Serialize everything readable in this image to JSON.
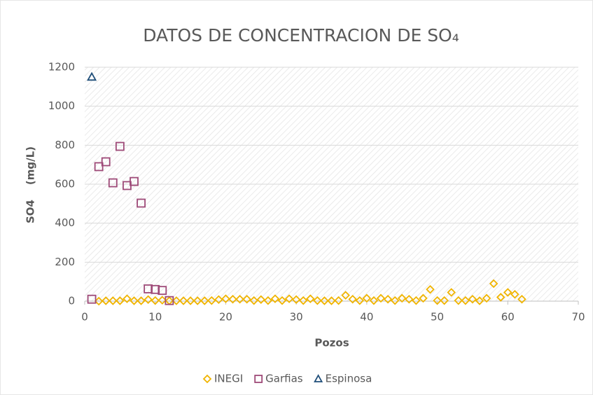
{
  "chart_data": {
    "type": "scatter",
    "title": "DATOS DE CONCENTRACION DE SO₄",
    "x_label": "Pozos",
    "y_label": "SO4    (mg/L)",
    "xlim": [
      0,
      70
    ],
    "xticks": [
      0,
      10,
      20,
      30,
      40,
      50,
      60,
      70
    ],
    "ylim": [
      0,
      1200
    ],
    "yticks": [
      0,
      200,
      400,
      600,
      800,
      1000,
      1200
    ],
    "grid": true,
    "legend": "bottom",
    "series": [
      {
        "name": "INEGI",
        "color": "#f0b400",
        "marker": "diamond",
        "x": [
          2,
          3,
          4,
          5,
          6,
          7,
          8,
          9,
          10,
          11,
          12,
          13,
          14,
          15,
          16,
          17,
          18,
          19,
          20,
          21,
          22,
          23,
          24,
          25,
          26,
          27,
          28,
          29,
          30,
          31,
          32,
          33,
          34,
          35,
          36,
          37,
          38,
          39,
          40,
          41,
          42,
          43,
          44,
          45,
          46,
          47,
          48,
          49,
          50,
          51,
          52,
          53,
          54,
          55,
          56,
          57,
          58,
          59,
          60,
          61,
          62
        ],
        "values": [
          0,
          2,
          2,
          2,
          12,
          2,
          2,
          8,
          3,
          5,
          2,
          2,
          2,
          2,
          2,
          2,
          3,
          8,
          12,
          10,
          10,
          10,
          3,
          8,
          3,
          12,
          3,
          12,
          8,
          3,
          12,
          3,
          2,
          2,
          3,
          30,
          10,
          3,
          15,
          3,
          15,
          10,
          3,
          15,
          10,
          3,
          15,
          60,
          3,
          3,
          45,
          3,
          3,
          10,
          2,
          15,
          90,
          20,
          45,
          35,
          10
        ]
      },
      {
        "name": "Garfias",
        "color": "#9e4a78",
        "marker": "square",
        "x": [
          1,
          2,
          3,
          4,
          5,
          6,
          7,
          8,
          9,
          10,
          11,
          12
        ],
        "values": [
          10,
          690,
          715,
          607,
          794,
          593,
          614,
          503,
          63,
          60,
          55,
          3
        ]
      },
      {
        "name": "Espinosa",
        "color": "#1f4e79",
        "marker": "triangle",
        "x": [
          1
        ],
        "values": [
          1150
        ]
      }
    ]
  }
}
